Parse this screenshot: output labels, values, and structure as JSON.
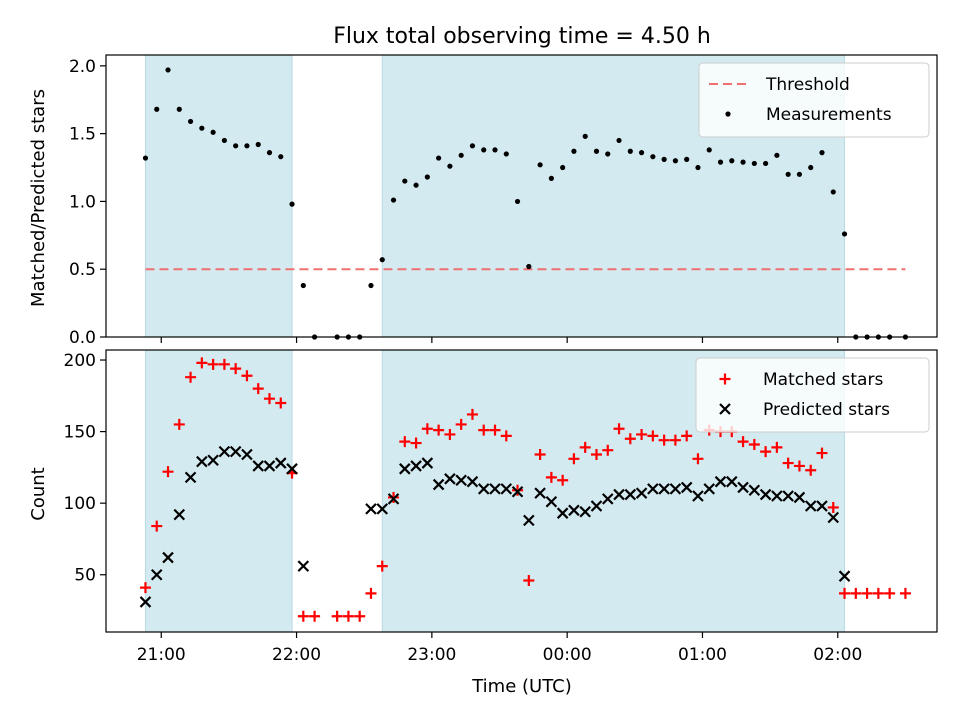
{
  "title": "Flux total observing time = 4.50 h",
  "x_axis": {
    "label": "Time (UTC)",
    "ticks": [
      {
        "t": 0,
        "label": "21:00"
      },
      {
        "t": 60,
        "label": "22:00"
      },
      {
        "t": 120,
        "label": "23:00"
      },
      {
        "t": 180,
        "label": "00:00"
      },
      {
        "t": 240,
        "label": "01:00"
      },
      {
        "t": 300,
        "label": "02:00"
      }
    ],
    "range": [
      -24.5,
      344
    ]
  },
  "observing_windows": [
    {
      "start": "20:53",
      "end": "21:58"
    },
    {
      "start": "22:38",
      "end": "02:03"
    }
  ],
  "shade_color": "#d3eaf0",
  "chart_data": [
    {
      "type": "scatter",
      "ylabel": "Matched/Predicted stars",
      "ylim": [
        0,
        2.08
      ],
      "yticks": [
        "0.0",
        "0.5",
        "1.0",
        "1.5",
        "2.0"
      ],
      "legend_position": "top-right",
      "threshold": {
        "name": "Threshold",
        "value": 0.5,
        "x_range": [
          "20:53",
          "02:30"
        ],
        "color": "#f07070"
      },
      "series": [
        {
          "name": "Measurements",
          "color": "#000000",
          "points": [
            {
              "x": "20:53",
              "y": 1.32
            },
            {
              "x": "20:58",
              "y": 1.68
            },
            {
              "x": "21:03",
              "y": 1.97
            },
            {
              "x": "21:08",
              "y": 1.68
            },
            {
              "x": "21:13",
              "y": 1.59
            },
            {
              "x": "21:18",
              "y": 1.54
            },
            {
              "x": "21:23",
              "y": 1.51
            },
            {
              "x": "21:28",
              "y": 1.45
            },
            {
              "x": "21:33",
              "y": 1.41
            },
            {
              "x": "21:38",
              "y": 1.41
            },
            {
              "x": "21:43",
              "y": 1.42
            },
            {
              "x": "21:48",
              "y": 1.36
            },
            {
              "x": "21:53",
              "y": 1.33
            },
            {
              "x": "21:58",
              "y": 0.98
            },
            {
              "x": "22:03",
              "y": 0.38
            },
            {
              "x": "22:08",
              "y": 0.0
            },
            {
              "x": "22:18",
              "y": 0.0
            },
            {
              "x": "22:23",
              "y": 0.0
            },
            {
              "x": "22:28",
              "y": 0.0
            },
            {
              "x": "22:33",
              "y": 0.38
            },
            {
              "x": "22:38",
              "y": 0.57
            },
            {
              "x": "22:43",
              "y": 1.01
            },
            {
              "x": "22:48",
              "y": 1.15
            },
            {
              "x": "22:53",
              "y": 1.12
            },
            {
              "x": "22:58",
              "y": 1.18
            },
            {
              "x": "23:03",
              "y": 1.32
            },
            {
              "x": "23:08",
              "y": 1.26
            },
            {
              "x": "23:13",
              "y": 1.34
            },
            {
              "x": "23:18",
              "y": 1.41
            },
            {
              "x": "23:23",
              "y": 1.38
            },
            {
              "x": "23:28",
              "y": 1.38
            },
            {
              "x": "23:33",
              "y": 1.35
            },
            {
              "x": "23:38",
              "y": 1.0
            },
            {
              "x": "23:43",
              "y": 0.52
            },
            {
              "x": "23:48",
              "y": 1.27
            },
            {
              "x": "23:53",
              "y": 1.17
            },
            {
              "x": "23:58",
              "y": 1.25
            },
            {
              "x": "00:03",
              "y": 1.37
            },
            {
              "x": "00:08",
              "y": 1.48
            },
            {
              "x": "00:13",
              "y": 1.37
            },
            {
              "x": "00:18",
              "y": 1.35
            },
            {
              "x": "00:23",
              "y": 1.45
            },
            {
              "x": "00:28",
              "y": 1.37
            },
            {
              "x": "00:33",
              "y": 1.36
            },
            {
              "x": "00:38",
              "y": 1.33
            },
            {
              "x": "00:43",
              "y": 1.31
            },
            {
              "x": "00:48",
              "y": 1.3
            },
            {
              "x": "00:53",
              "y": 1.31
            },
            {
              "x": "00:58",
              "y": 1.25
            },
            {
              "x": "01:03",
              "y": 1.38
            },
            {
              "x": "01:08",
              "y": 1.29
            },
            {
              "x": "01:13",
              "y": 1.3
            },
            {
              "x": "01:18",
              "y": 1.29
            },
            {
              "x": "01:23",
              "y": 1.28
            },
            {
              "x": "01:28",
              "y": 1.28
            },
            {
              "x": "01:33",
              "y": 1.34
            },
            {
              "x": "01:38",
              "y": 1.2
            },
            {
              "x": "01:43",
              "y": 1.2
            },
            {
              "x": "01:48",
              "y": 1.25
            },
            {
              "x": "01:53",
              "y": 1.36
            },
            {
              "x": "01:58",
              "y": 1.07
            },
            {
              "x": "02:03",
              "y": 0.76
            },
            {
              "x": "02:08",
              "y": 0.0
            },
            {
              "x": "02:13",
              "y": 0.0
            },
            {
              "x": "02:18",
              "y": 0.0
            },
            {
              "x": "02:23",
              "y": 0.0
            },
            {
              "x": "02:30",
              "y": 0.0
            }
          ]
        }
      ]
    },
    {
      "type": "scatter",
      "ylabel": "Count",
      "ylim": [
        10,
        207
      ],
      "yticks": [
        "50",
        "100",
        "150",
        "200"
      ],
      "legend_position": "top-right",
      "series": [
        {
          "name": "Matched stars",
          "marker": "+",
          "color": "#ff0000",
          "points": [
            {
              "x": "20:53",
              "y": 41
            },
            {
              "x": "20:58",
              "y": 84
            },
            {
              "x": "21:03",
              "y": 122
            },
            {
              "x": "21:08",
              "y": 155
            },
            {
              "x": "21:13",
              "y": 188
            },
            {
              "x": "21:18",
              "y": 198
            },
            {
              "x": "21:23",
              "y": 197
            },
            {
              "x": "21:28",
              "y": 197
            },
            {
              "x": "21:33",
              "y": 194
            },
            {
              "x": "21:38",
              "y": 189
            },
            {
              "x": "21:43",
              "y": 180
            },
            {
              "x": "21:48",
              "y": 173
            },
            {
              "x": "21:53",
              "y": 170
            },
            {
              "x": "21:58",
              "y": 121
            },
            {
              "x": "22:03",
              "y": 21
            },
            {
              "x": "22:08",
              "y": 21
            },
            {
              "x": "22:18",
              "y": 21
            },
            {
              "x": "22:23",
              "y": 21
            },
            {
              "x": "22:28",
              "y": 21
            },
            {
              "x": "22:33",
              "y": 37
            },
            {
              "x": "22:38",
              "y": 56
            },
            {
              "x": "22:43",
              "y": 104
            },
            {
              "x": "22:48",
              "y": 143
            },
            {
              "x": "22:53",
              "y": 142
            },
            {
              "x": "22:58",
              "y": 152
            },
            {
              "x": "23:03",
              "y": 151
            },
            {
              "x": "23:08",
              "y": 148
            },
            {
              "x": "23:13",
              "y": 155
            },
            {
              "x": "23:18",
              "y": 162
            },
            {
              "x": "23:23",
              "y": 151
            },
            {
              "x": "23:28",
              "y": 151
            },
            {
              "x": "23:33",
              "y": 147
            },
            {
              "x": "23:38",
              "y": 109
            },
            {
              "x": "23:43",
              "y": 46
            },
            {
              "x": "23:48",
              "y": 134
            },
            {
              "x": "23:53",
              "y": 118
            },
            {
              "x": "23:58",
              "y": 116
            },
            {
              "x": "00:03",
              "y": 131
            },
            {
              "x": "00:08",
              "y": 139
            },
            {
              "x": "00:13",
              "y": 134
            },
            {
              "x": "00:18",
              "y": 137
            },
            {
              "x": "00:23",
              "y": 152
            },
            {
              "x": "00:28",
              "y": 145
            },
            {
              "x": "00:33",
              "y": 148
            },
            {
              "x": "00:38",
              "y": 147
            },
            {
              "x": "00:43",
              "y": 144
            },
            {
              "x": "00:48",
              "y": 144
            },
            {
              "x": "00:53",
              "y": 147
            },
            {
              "x": "00:58",
              "y": 131
            },
            {
              "x": "01:03",
              "y": 151
            },
            {
              "x": "01:08",
              "y": 150
            },
            {
              "x": "01:13",
              "y": 150
            },
            {
              "x": "01:18",
              "y": 143
            },
            {
              "x": "01:23",
              "y": 141
            },
            {
              "x": "01:28",
              "y": 136
            },
            {
              "x": "01:33",
              "y": 139
            },
            {
              "x": "01:38",
              "y": 128
            },
            {
              "x": "01:43",
              "y": 126
            },
            {
              "x": "01:48",
              "y": 123
            },
            {
              "x": "01:53",
              "y": 135
            },
            {
              "x": "01:58",
              "y": 97
            },
            {
              "x": "02:03",
              "y": 37
            },
            {
              "x": "02:08",
              "y": 37
            },
            {
              "x": "02:13",
              "y": 37
            },
            {
              "x": "02:18",
              "y": 37
            },
            {
              "x": "02:23",
              "y": 37
            },
            {
              "x": "02:30",
              "y": 37
            }
          ]
        },
        {
          "name": "Predicted stars",
          "marker": "x",
          "color": "#000000",
          "points": [
            {
              "x": "20:53",
              "y": 31
            },
            {
              "x": "20:58",
              "y": 50
            },
            {
              "x": "21:03",
              "y": 62
            },
            {
              "x": "21:08",
              "y": 92
            },
            {
              "x": "21:13",
              "y": 118
            },
            {
              "x": "21:18",
              "y": 129
            },
            {
              "x": "21:23",
              "y": 130
            },
            {
              "x": "21:28",
              "y": 136
            },
            {
              "x": "21:33",
              "y": 136
            },
            {
              "x": "21:38",
              "y": 134
            },
            {
              "x": "21:43",
              "y": 126
            },
            {
              "x": "21:48",
              "y": 126
            },
            {
              "x": "21:53",
              "y": 128
            },
            {
              "x": "21:58",
              "y": 124
            },
            {
              "x": "22:03",
              "y": 56
            },
            {
              "x": "22:33",
              "y": 96
            },
            {
              "x": "22:38",
              "y": 96
            },
            {
              "x": "22:43",
              "y": 103
            },
            {
              "x": "22:48",
              "y": 124
            },
            {
              "x": "22:53",
              "y": 126
            },
            {
              "x": "22:58",
              "y": 128
            },
            {
              "x": "23:03",
              "y": 113
            },
            {
              "x": "23:08",
              "y": 117
            },
            {
              "x": "23:13",
              "y": 116
            },
            {
              "x": "23:18",
              "y": 115
            },
            {
              "x": "23:23",
              "y": 110
            },
            {
              "x": "23:28",
              "y": 110
            },
            {
              "x": "23:33",
              "y": 110
            },
            {
              "x": "23:38",
              "y": 108
            },
            {
              "x": "23:43",
              "y": 88
            },
            {
              "x": "23:48",
              "y": 107
            },
            {
              "x": "23:53",
              "y": 101
            },
            {
              "x": "23:58",
              "y": 93
            },
            {
              "x": "00:03",
              "y": 95
            },
            {
              "x": "00:08",
              "y": 94
            },
            {
              "x": "00:13",
              "y": 98
            },
            {
              "x": "00:18",
              "y": 103
            },
            {
              "x": "00:23",
              "y": 106
            },
            {
              "x": "00:28",
              "y": 106
            },
            {
              "x": "00:33",
              "y": 107
            },
            {
              "x": "00:38",
              "y": 110
            },
            {
              "x": "00:43",
              "y": 110
            },
            {
              "x": "00:48",
              "y": 110
            },
            {
              "x": "00:53",
              "y": 111
            },
            {
              "x": "00:58",
              "y": 105
            },
            {
              "x": "01:03",
              "y": 110
            },
            {
              "x": "01:08",
              "y": 115
            },
            {
              "x": "01:13",
              "y": 115
            },
            {
              "x": "01:18",
              "y": 111
            },
            {
              "x": "01:23",
              "y": 109
            },
            {
              "x": "01:28",
              "y": 106
            },
            {
              "x": "01:33",
              "y": 105
            },
            {
              "x": "01:38",
              "y": 105
            },
            {
              "x": "01:43",
              "y": 104
            },
            {
              "x": "01:48",
              "y": 98
            },
            {
              "x": "01:53",
              "y": 98
            },
            {
              "x": "01:58",
              "y": 90
            },
            {
              "x": "02:03",
              "y": 49
            }
          ]
        }
      ]
    }
  ]
}
